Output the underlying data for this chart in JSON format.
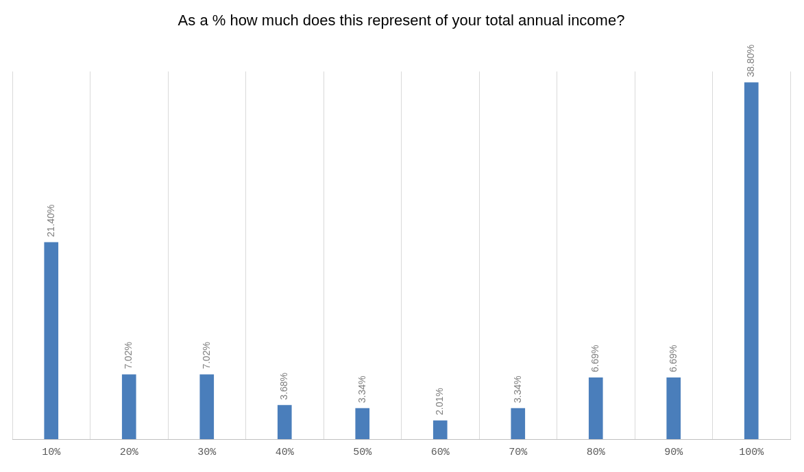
{
  "chart_data": {
    "type": "bar",
    "title": "As a % how much does this represent of your total annual income?",
    "categories": [
      "10%",
      "20%",
      "30%",
      "40%",
      "50%",
      "60%",
      "70%",
      "80%",
      "90%",
      "100%"
    ],
    "values": [
      21.4,
      7.02,
      7.02,
      3.68,
      3.34,
      2.01,
      3.34,
      6.69,
      6.69,
      38.8
    ],
    "value_labels": [
      "21.40%",
      "7.02%",
      "7.02%",
      "3.68%",
      "3.34%",
      "2.01%",
      "3.34%",
      "6.69%",
      "6.69%",
      "38.80%"
    ],
    "color": "#4a7ebb",
    "grid": "x",
    "legend": false
  }
}
